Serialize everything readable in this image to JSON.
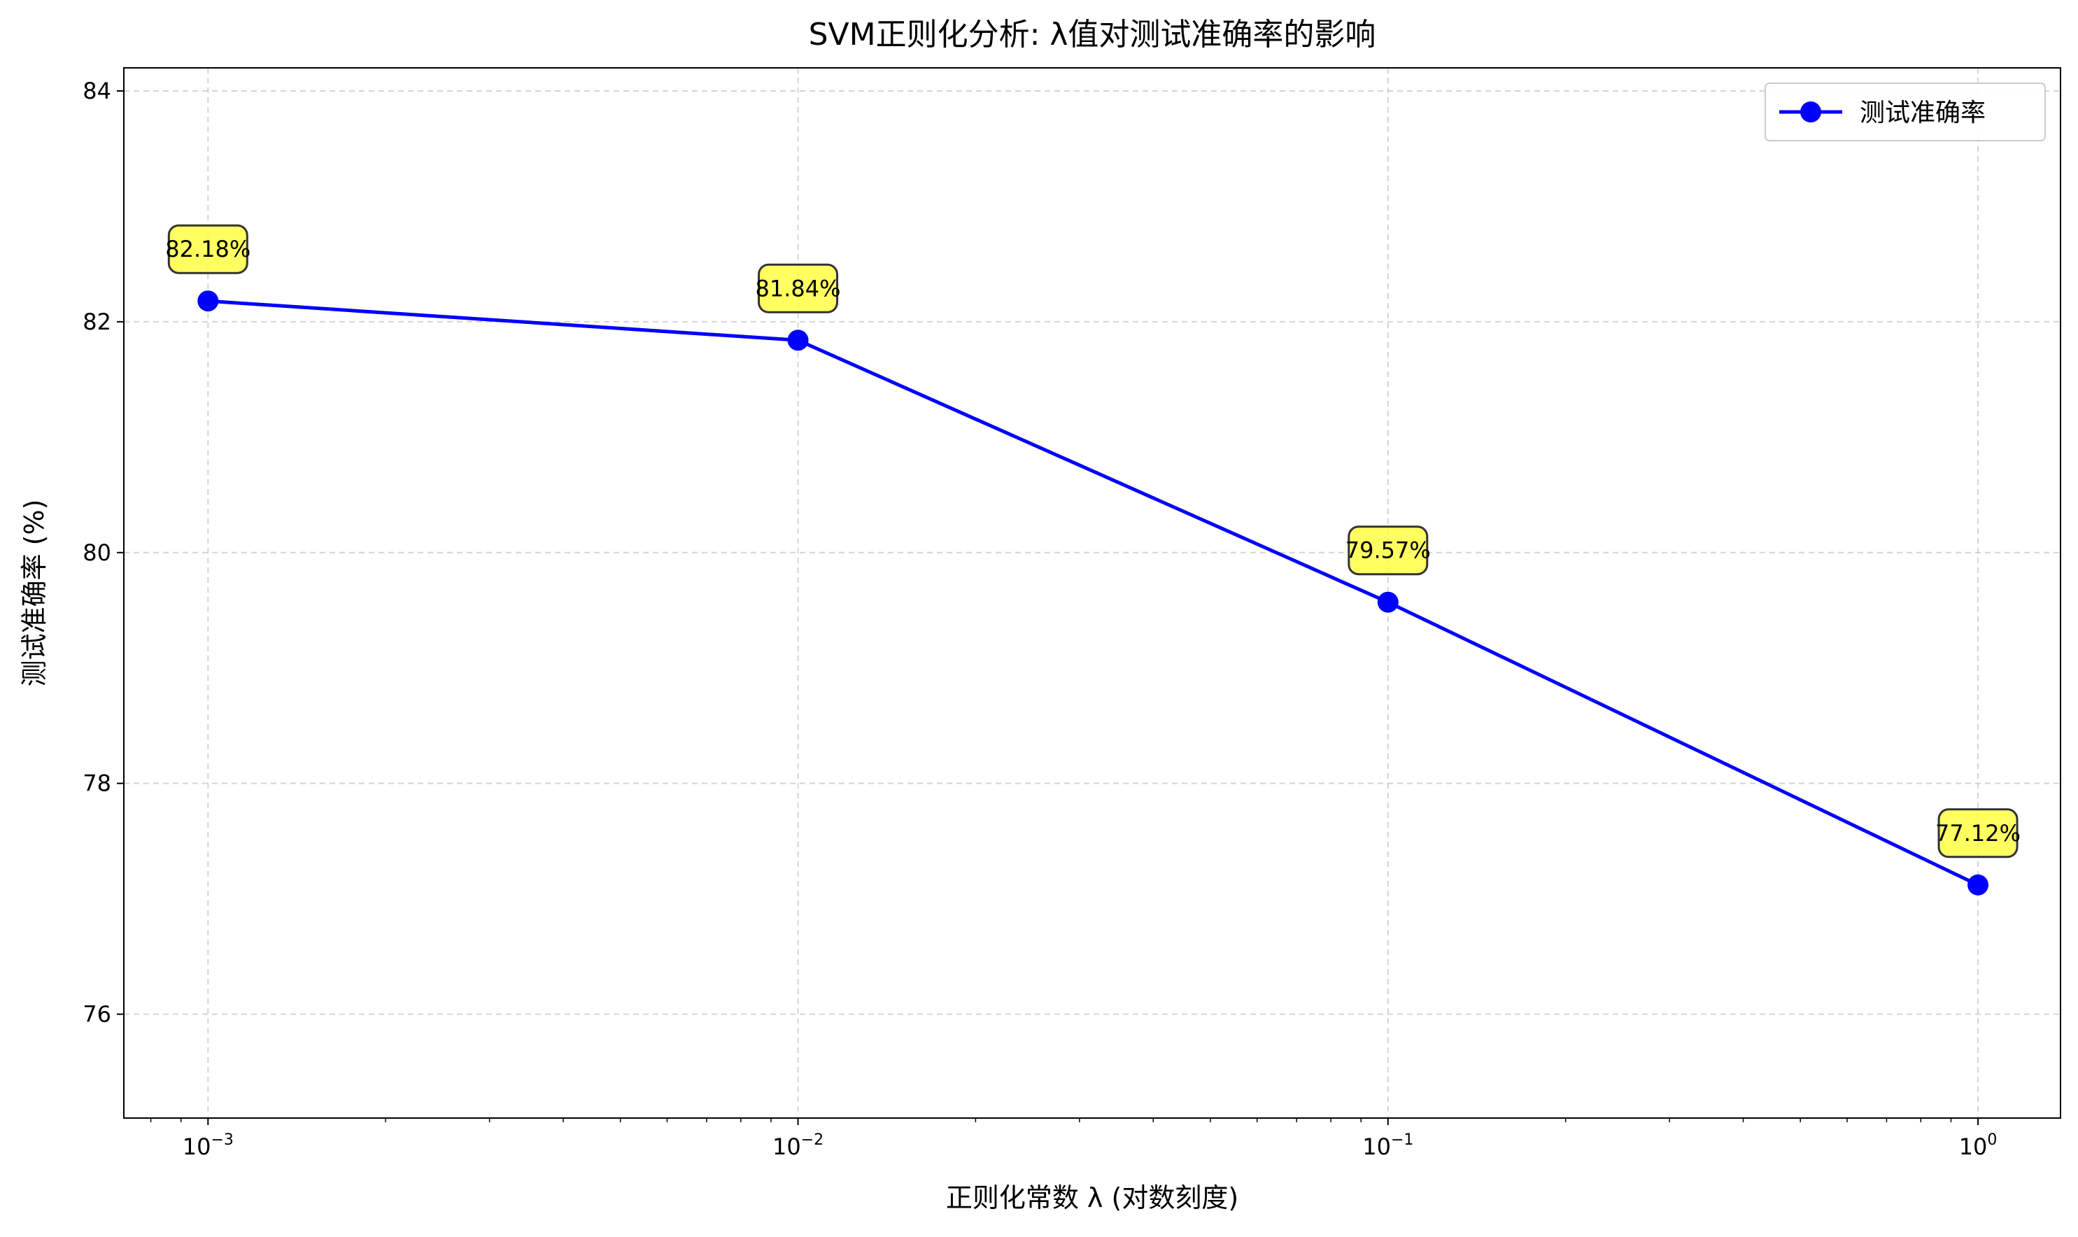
{
  "chart_data": {
    "type": "line",
    "title": "SVM正则化分析: λ值对测试准确率的影响",
    "xlabel": "正则化常数 λ (对数刻度)",
    "ylabel": "测试准确率 (%)",
    "x_scale": "log",
    "xlim": [
      0.00072,
      1.38
    ],
    "ylim": [
      75.1,
      84.2
    ],
    "grid": true,
    "legend_position": "top-right",
    "x_ticks": [
      {
        "value": 0.001,
        "base": "10",
        "exp": "−3"
      },
      {
        "value": 0.01,
        "base": "10",
        "exp": "−2"
      },
      {
        "value": 0.1,
        "base": "10",
        "exp": "−1"
      },
      {
        "value": 1,
        "base": "10",
        "exp": "0"
      }
    ],
    "y_ticks": [
      {
        "value": 76,
        "label": "76"
      },
      {
        "value": 78,
        "label": "78"
      },
      {
        "value": 80,
        "label": "80"
      },
      {
        "value": 82,
        "label": "82"
      },
      {
        "value": 84,
        "label": "84"
      }
    ],
    "series": [
      {
        "name": "测试准确率",
        "color": "#0000ff",
        "x": [
          0.001,
          0.01,
          0.1,
          1
        ],
        "y": [
          82.18,
          81.84,
          79.57,
          77.12
        ],
        "labels": [
          "82.18%",
          "81.84%",
          "79.57%",
          "77.12%"
        ]
      }
    ],
    "annotation_style": {
      "fill": "#ffff33",
      "stroke": "#333333"
    }
  }
}
